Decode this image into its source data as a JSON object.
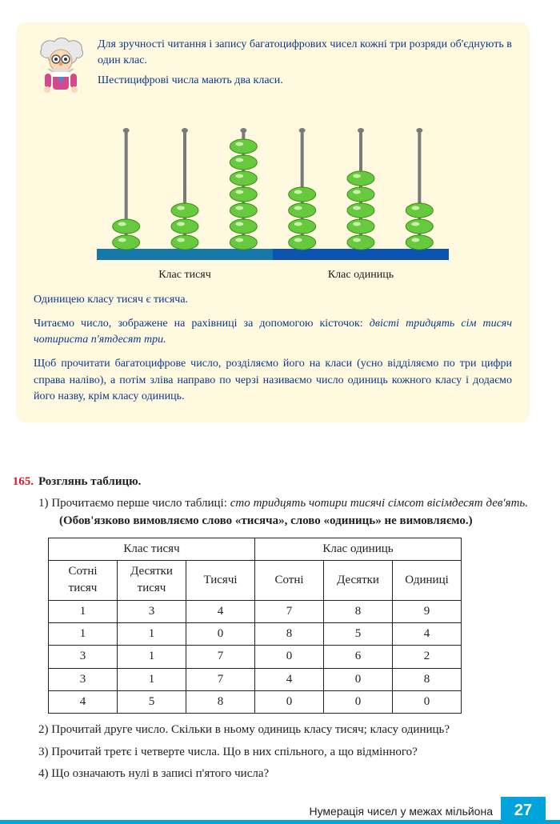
{
  "info": {
    "line1": "Для зручності читання і запису багатоцифрових чисел кожні три розряди об'єднують в один клас.",
    "line2": "Шестицифрові числа мають два класи.",
    "abacus": {
      "columns": [
        2,
        3,
        7,
        4,
        5,
        3
      ],
      "bead_fill": "#67c93e",
      "bead_stroke": "#3a8f14",
      "stick_color": "#7a7a7a",
      "bar_left_color": "#1678a6",
      "bar_right_color": "#0b55b0",
      "label_left": "Клас тисяч",
      "label_right": "Клас одиниць"
    },
    "line3": "Одиницею класу тисяч є тисяча.",
    "line4a": "Читаємо число, зображене на рахівниці за допомогою кісточок: ",
    "line4b": "двісті тридцять сім тисяч чотириста п'ятдесят три.",
    "line5": "Щоб прочитати багатоцифрове число, розділяємо його на класи (усно відділяємо по три цифри справа наліво), а потім зліва направо по черзі називаємо число одиниць кожного класу і додаємо його назву, крім класу одиниць."
  },
  "exercise": {
    "number": "165.",
    "title": "Розглянь таблицю.",
    "item1a": "1) Прочитаємо перше число таблиці: ",
    "item1b": "сто тридцять чотири тисячі сімсот вісімдесят дев'ять.",
    "item1c": " (Обов'язково вимовляємо слово «тисяча», слово «одиниць» не вимовляємо.)",
    "table": {
      "header_left": "Клас тисяч",
      "header_right": "Клас одиниць",
      "cols": [
        "Сотні тисяч",
        "Десятки тисяч",
        "Тисячі",
        "Сотні",
        "Десятки",
        "Одиниці"
      ],
      "rows": [
        [
          "1",
          "3",
          "4",
          "7",
          "8",
          "9"
        ],
        [
          "1",
          "1",
          "0",
          "8",
          "5",
          "4"
        ],
        [
          "3",
          "1",
          "7",
          "0",
          "6",
          "2"
        ],
        [
          "3",
          "1",
          "7",
          "4",
          "0",
          "8"
        ],
        [
          "4",
          "5",
          "8",
          "0",
          "0",
          "0"
        ]
      ]
    },
    "item2": "2) Прочитай друге число. Скільки в ньому одиниць класу тисяч; класу одиниць?",
    "item3": "3) Прочитай третє і четверте числа. Що в них спільного, а що відмінного?",
    "item4": "4) Що означають нулі в записі п'ятого числа?"
  },
  "footer": {
    "text": "Нумерація чисел у межах мільйона",
    "page": "27"
  }
}
